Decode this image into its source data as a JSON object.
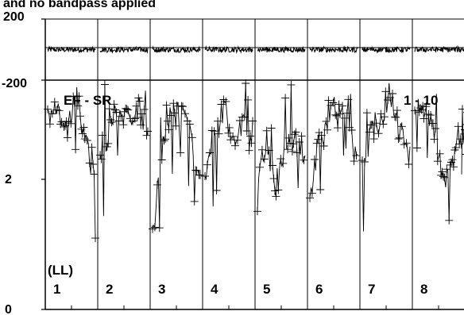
{
  "chart_data": {
    "type": "scatter",
    "title": "and no bandpass applied",
    "subtitle": "",
    "xlabel": "",
    "ylabel": "",
    "marker": "plus",
    "connected": true,
    "color": "#000000",
    "grid": "vertical dividers between panels",
    "top_panel": {
      "ylim": [
        -200,
        200
      ],
      "y_tick_labels": [
        "200",
        "-200"
      ],
      "series_center": 0,
      "series_halfwidth": 18
    },
    "bottom_panel": {
      "ylim": [
        0,
        4
      ],
      "y_tick_labels": [
        "2",
        "0"
      ],
      "label_left": "EF - SR",
      "label_right": "1 - 10",
      "polarization": "(LL)"
    },
    "panels": [
      {
        "label": "1",
        "levels": [
          3.35,
          3.55,
          3.1,
          3.65,
          3.0,
          2.3
        ]
      },
      {
        "label": "2",
        "levels": [
          2.6,
          3.3,
          3.45,
          3.2,
          3.5,
          3.1
        ]
      },
      {
        "label": "3",
        "levels": [
          1.3,
          2.9,
          3.4,
          3.6,
          3.1,
          2.2
        ]
      },
      {
        "label": "4",
        "levels": [
          2.2,
          3.15,
          3.5,
          2.9,
          3.2,
          2.9
        ]
      },
      {
        "label": "5",
        "levels": [
          2.4,
          2.75,
          2.1,
          2.9,
          3.0,
          2.6
        ]
      },
      {
        "label": "6",
        "levels": [
          2.0,
          3.0,
          3.4,
          3.6,
          3.2,
          2.7
        ]
      },
      {
        "label": "7",
        "levels": [
          2.4,
          3.15,
          3.25,
          3.7,
          3.15,
          2.6
        ]
      },
      {
        "label": "8",
        "levels": [
          3.6,
          3.4,
          3.1,
          2.3,
          2.7,
          2.9
        ]
      },
      {
        "label": "",
        "levels": [
          3.6,
          3.0,
          2.6
        ]
      }
    ]
  }
}
